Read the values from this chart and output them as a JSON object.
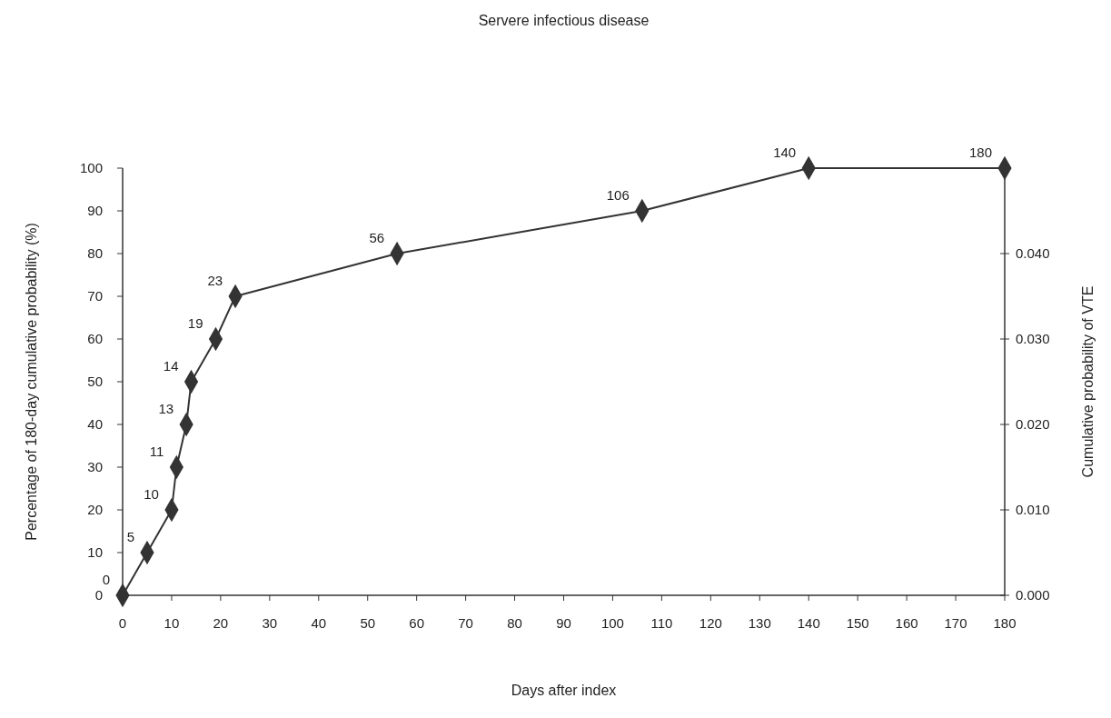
{
  "chart_data": {
    "type": "line",
    "title": "Servere infectious disease",
    "xlabel": "Days after index",
    "ylabel": "Percentage of 180-day cumulative probability (%)",
    "y2label": "Cumulative probability of VTE",
    "x": [
      0,
      5,
      10,
      11,
      13,
      14,
      19,
      23,
      56,
      106,
      140,
      180
    ],
    "series": [
      {
        "color": "#333333",
        "values": [
          0,
          10,
          20,
          30,
          40,
          50,
          60,
          70,
          80,
          90,
          100,
          100
        ]
      }
    ],
    "annotations": [
      {
        "text": "0",
        "x": 0,
        "y": 0
      },
      {
        "text": "5",
        "x": 5,
        "y": 10
      },
      {
        "text": "10",
        "x": 10,
        "y": 20
      },
      {
        "text": "11",
        "x": 11,
        "y": 30
      },
      {
        "text": "13",
        "x": 13,
        "y": 40
      },
      {
        "text": "14",
        "x": 14,
        "y": 50
      },
      {
        "text": "19",
        "x": 19,
        "y": 60
      },
      {
        "text": "23",
        "x": 23,
        "y": 70
      },
      {
        "text": "56",
        "x": 56,
        "y": 80
      },
      {
        "text": "106",
        "x": 106,
        "y": 90
      },
      {
        "text": "140",
        "x": 140,
        "y": 100
      },
      {
        "text": "180",
        "x": 180,
        "y": 100
      }
    ],
    "xlim": [
      0,
      180
    ],
    "xticks": [
      0,
      10,
      20,
      30,
      40,
      50,
      60,
      70,
      80,
      90,
      100,
      110,
      120,
      130,
      140,
      150,
      160,
      170,
      180
    ],
    "ylim": [
      0,
      100
    ],
    "yticks": [
      0,
      10,
      20,
      30,
      40,
      50,
      60,
      70,
      80,
      90,
      100
    ],
    "y2lim": [
      0,
      0.05
    ],
    "y2ticks": [
      {
        "value": 0,
        "label": "0.000"
      },
      {
        "value": 0.01,
        "label": "0.010"
      },
      {
        "value": 0.02,
        "label": "0.020"
      },
      {
        "value": 0.03,
        "label": "0.030"
      },
      {
        "value": 0.04,
        "label": "0.040"
      }
    ],
    "grid": false,
    "marker": "diamond",
    "line_style": "solid"
  }
}
